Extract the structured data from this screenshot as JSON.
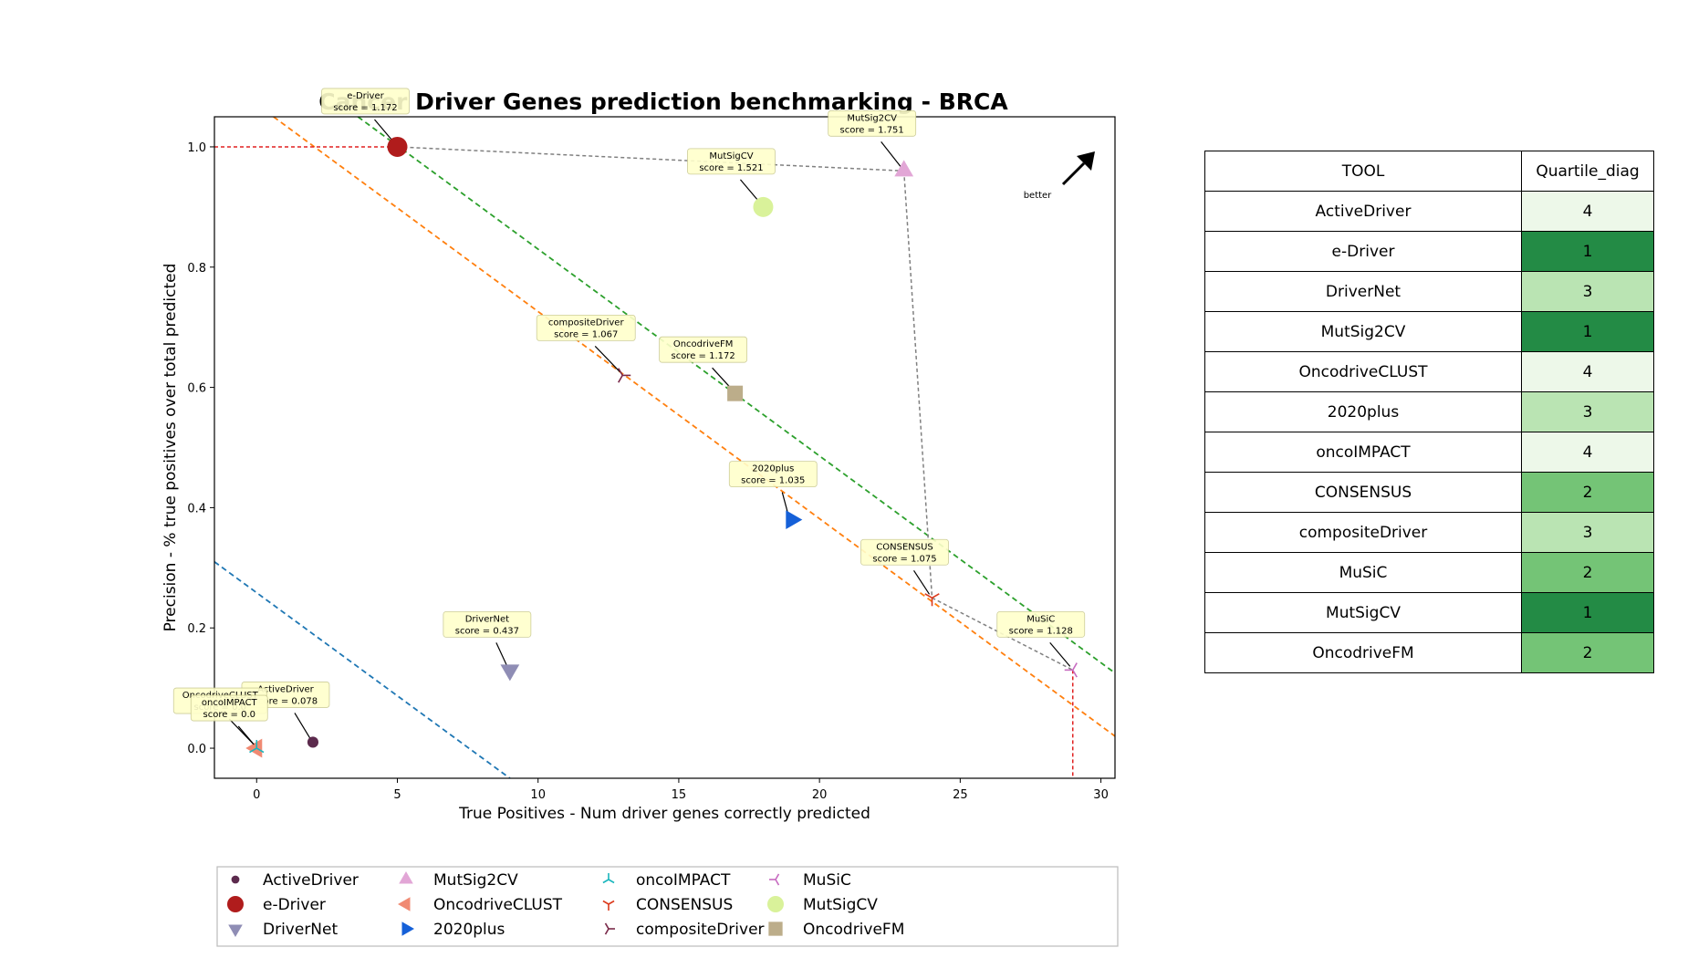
{
  "chart_data": {
    "type": "scatter",
    "title": "Cancer Driver Genes prediction benchmarking - BRCA",
    "xlabel": "True Positives - Num driver genes correctly predicted",
    "ylabel": "Precision - % true positives over total predicted",
    "xlim": [
      -1.5,
      30.5
    ],
    "ylim": [
      -0.05,
      1.05
    ],
    "xticks": [
      0,
      5,
      10,
      15,
      20,
      25,
      30
    ],
    "yticks": [
      0.0,
      0.2,
      0.4,
      0.6,
      0.8,
      1.0
    ],
    "better_label": "better",
    "series": [
      {
        "name": "ActiveDriver",
        "x": 2,
        "y": 0.01,
        "marker": "dot",
        "color": "#5c2a4d",
        "annotation": [
          "ActiveDriver",
          "score = 0.078"
        ]
      },
      {
        "name": "e-Driver",
        "x": 5,
        "y": 1.0,
        "marker": "circle",
        "color": "#b01c1c",
        "annotation": [
          "e-Driver",
          "score = 1.172"
        ]
      },
      {
        "name": "DriverNet",
        "x": 9,
        "y": 0.13,
        "marker": "triangle-down",
        "color": "#8f8db5",
        "annotation": [
          "DriverNet",
          "score = 0.437"
        ]
      },
      {
        "name": "MutSig2CV",
        "x": 23,
        "y": 0.96,
        "marker": "triangle-up",
        "color": "#e2a6d6",
        "annotation": [
          "MutSig2CV",
          "score = 1.751"
        ]
      },
      {
        "name": "OncodriveCLUST",
        "x": 0,
        "y": 0.0,
        "marker": "triangle-left",
        "color": "#f08a73",
        "annotation": [
          "OncodriveCLUST",
          "score = 0.0"
        ]
      },
      {
        "name": "2020plus",
        "x": 19,
        "y": 0.38,
        "marker": "triangle-right",
        "color": "#1560d8",
        "annotation": [
          "2020plus",
          "score = 1.035"
        ]
      },
      {
        "name": "oncoIMPACT",
        "x": 0,
        "y": 0.0,
        "marker": "tri-down",
        "color": "#1ab6bd",
        "annotation": [
          "oncoIMPACT",
          "score = 0.0"
        ]
      },
      {
        "name": "CONSENSUS",
        "x": 24,
        "y": 0.25,
        "marker": "tri-up",
        "color": "#dc3a1c",
        "annotation": [
          "CONSENSUS",
          "score = 1.075"
        ]
      },
      {
        "name": "compositeDriver",
        "x": 13,
        "y": 0.62,
        "marker": "tri-left",
        "color": "#7a2a4a",
        "annotation": [
          "compositeDriver",
          "score = 1.067"
        ]
      },
      {
        "name": "MuSiC",
        "x": 29,
        "y": 0.13,
        "marker": "tri-right",
        "color": "#c76bc0",
        "annotation": [
          "MuSiC",
          "score = 1.128"
        ]
      },
      {
        "name": "MutSigCV",
        "x": 18,
        "y": 0.9,
        "marker": "circle",
        "color": "#d9f29a",
        "annotation": [
          "MutSigCV",
          "score = 1.521"
        ]
      },
      {
        "name": "OncodriveFM",
        "x": 17,
        "y": 0.59,
        "marker": "square",
        "color": "#bcad8a",
        "annotation": [
          "OncodriveFM",
          "score = 1.172"
        ]
      }
    ],
    "pareto_frontier": [
      [
        5,
        1.0
      ],
      [
        23,
        0.96
      ],
      [
        24,
        0.25
      ],
      [
        29,
        0.13
      ]
    ],
    "diagonal_lines": [
      {
        "color": "#1f77b4",
        "points": [
          [
            -1.5,
            0.31
          ],
          [
            9,
            -0.05
          ]
        ]
      },
      {
        "color": "#ff7f0e",
        "points": [
          [
            0.6,
            1.05
          ],
          [
            30.5,
            0.02
          ]
        ]
      },
      {
        "color": "#2ca02c",
        "points": [
          [
            3.6,
            1.05
          ],
          [
            30.5,
            0.125
          ]
        ]
      }
    ],
    "legend_placement": "bottom"
  },
  "table": {
    "headers": [
      "TOOL",
      "Quartile_diag"
    ],
    "rows": [
      {
        "tool": "ActiveDriver",
        "quartile": "4",
        "color": "#edf8e9"
      },
      {
        "tool": "e-Driver",
        "quartile": "1",
        "color": "#238b45"
      },
      {
        "tool": "DriverNet",
        "quartile": "3",
        "color": "#bae4b3"
      },
      {
        "tool": "MutSig2CV",
        "quartile": "1",
        "color": "#238b45"
      },
      {
        "tool": "OncodriveCLUST",
        "quartile": "4",
        "color": "#edf8e9"
      },
      {
        "tool": "2020plus",
        "quartile": "3",
        "color": "#bae4b3"
      },
      {
        "tool": "oncoIMPACT",
        "quartile": "4",
        "color": "#edf8e9"
      },
      {
        "tool": "CONSENSUS",
        "quartile": "2",
        "color": "#74c476"
      },
      {
        "tool": "compositeDriver",
        "quartile": "3",
        "color": "#bae4b3"
      },
      {
        "tool": "MuSiC",
        "quartile": "2",
        "color": "#74c476"
      },
      {
        "tool": "MutSigCV",
        "quartile": "1",
        "color": "#238b45"
      },
      {
        "tool": "OncodriveFM",
        "quartile": "2",
        "color": "#74c476"
      }
    ]
  }
}
